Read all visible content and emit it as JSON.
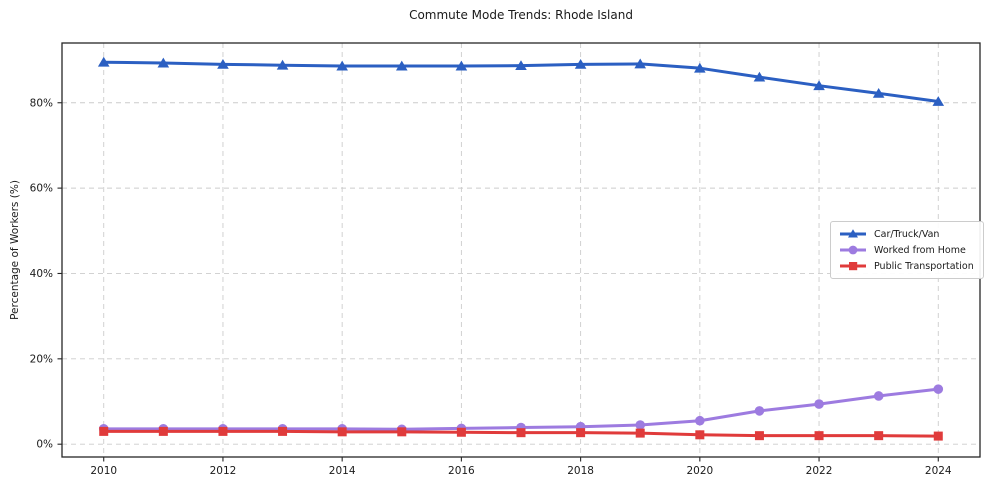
{
  "chart_data": {
    "type": "line",
    "title": "Commute Mode Trends: Rhode Island",
    "xlabel": "",
    "ylabel": "Percentage of Workers (%)",
    "x": [
      2010,
      2011,
      2012,
      2013,
      2014,
      2015,
      2016,
      2017,
      2018,
      2019,
      2020,
      2021,
      2022,
      2023,
      2024
    ],
    "series": [
      {
        "name": "Car/Truck/Van",
        "color": "#2b5fc2",
        "marker": "triangle",
        "values": [
          89.5,
          89.3,
          89.0,
          88.8,
          88.6,
          88.6,
          88.6,
          88.7,
          89.0,
          89.1,
          88.1,
          86.0,
          84.0,
          82.2,
          80.3
        ]
      },
      {
        "name": "Worked from Home",
        "color": "#9d7be0",
        "marker": "circle",
        "values": [
          3.6,
          3.6,
          3.6,
          3.6,
          3.6,
          3.5,
          3.7,
          3.9,
          4.1,
          4.5,
          5.5,
          7.8,
          9.4,
          11.3,
          12.9
        ]
      },
      {
        "name": "Public Transportation",
        "color": "#e03b3b",
        "marker": "square",
        "values": [
          3.0,
          3.0,
          3.0,
          3.0,
          2.9,
          2.9,
          2.8,
          2.7,
          2.7,
          2.6,
          2.2,
          2.0,
          2.0,
          2.0,
          1.9
        ]
      }
    ],
    "xticks": {
      "values": [
        2010,
        2012,
        2014,
        2016,
        2018,
        2020,
        2022,
        2024
      ],
      "labels": [
        "2010",
        "2012",
        "2014",
        "2016",
        "2018",
        "2020",
        "2022",
        "2024"
      ]
    },
    "yticks": {
      "values": [
        0,
        20,
        40,
        60,
        80
      ],
      "labels": [
        "0%",
        "20%",
        "40%",
        "60%",
        "80%"
      ]
    },
    "xlim": [
      2009.3,
      2024.7
    ],
    "ylim": [
      -3,
      94
    ],
    "grid": {
      "visible": true,
      "style": "dashed",
      "color": "#cccccc"
    },
    "legend_position": "center-right"
  },
  "colors": {
    "spine": "#262626",
    "tick_text": "#1a1a1a",
    "grid": "#cccccc",
    "background": "#ffffff"
  }
}
